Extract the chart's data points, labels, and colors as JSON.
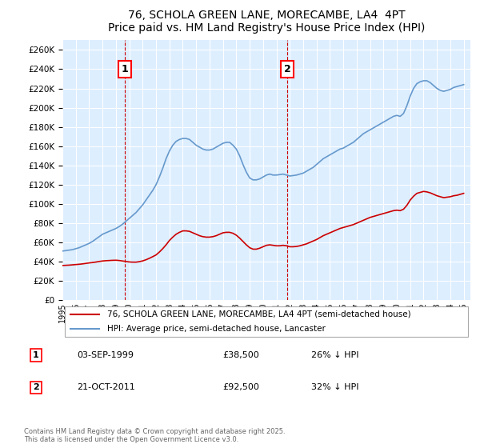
{
  "title": "76, SCHOLA GREEN LANE, MORECAMBE, LA4  4PT",
  "subtitle": "Price paid vs. HM Land Registry's House Price Index (HPI)",
  "background_color": "#ddeeff",
  "plot_bg_color": "#ddeeff",
  "ylabel": "",
  "ylim": [
    0,
    270000
  ],
  "yticks": [
    0,
    20000,
    40000,
    60000,
    80000,
    100000,
    120000,
    140000,
    160000,
    180000,
    200000,
    220000,
    240000,
    260000
  ],
  "xlim_start": 1995.0,
  "xlim_end": 2025.5,
  "red_line_color": "#cc0000",
  "blue_line_color": "#6699cc",
  "marker1_x": 1999.67,
  "marker1_y": 38500,
  "marker1_label": "1",
  "marker2_x": 2011.8,
  "marker2_y": 92500,
  "marker2_label": "2",
  "vline1_x": 1999.67,
  "vline2_x": 2011.8,
  "legend_line1": "76, SCHOLA GREEN LANE, MORECAMBE, LA4 4PT (semi-detached house)",
  "legend_line2": "HPI: Average price, semi-detached house, Lancaster",
  "annotation1_box": "1",
  "annotation1_date": "03-SEP-1999",
  "annotation1_price": "£38,500",
  "annotation1_hpi": "26% ↓ HPI",
  "annotation2_box": "2",
  "annotation2_date": "21-OCT-2011",
  "annotation2_price": "£92,500",
  "annotation2_hpi": "32% ↓ HPI",
  "copyright_text": "Contains HM Land Registry data © Crown copyright and database right 2025.\nThis data is licensed under the Open Government Licence v3.0.",
  "hpi_years": [
    1995.0,
    1995.25,
    1995.5,
    1995.75,
    1996.0,
    1996.25,
    1996.5,
    1996.75,
    1997.0,
    1997.25,
    1997.5,
    1997.75,
    1998.0,
    1998.25,
    1998.5,
    1998.75,
    1999.0,
    1999.25,
    1999.5,
    1999.75,
    2000.0,
    2000.25,
    2000.5,
    2000.75,
    2001.0,
    2001.25,
    2001.5,
    2001.75,
    2002.0,
    2002.25,
    2002.5,
    2002.75,
    2003.0,
    2003.25,
    2003.5,
    2003.75,
    2004.0,
    2004.25,
    2004.5,
    2004.75,
    2005.0,
    2005.25,
    2005.5,
    2005.75,
    2006.0,
    2006.25,
    2006.5,
    2006.75,
    2007.0,
    2007.25,
    2007.5,
    2007.75,
    2008.0,
    2008.25,
    2008.5,
    2008.75,
    2009.0,
    2009.25,
    2009.5,
    2009.75,
    2010.0,
    2010.25,
    2010.5,
    2010.75,
    2011.0,
    2011.25,
    2011.5,
    2011.75,
    2012.0,
    2012.25,
    2012.5,
    2012.75,
    2013.0,
    2013.25,
    2013.5,
    2013.75,
    2014.0,
    2014.25,
    2014.5,
    2014.75,
    2015.0,
    2015.25,
    2015.5,
    2015.75,
    2016.0,
    2016.25,
    2016.5,
    2016.75,
    2017.0,
    2017.25,
    2017.5,
    2017.75,
    2018.0,
    2018.25,
    2018.5,
    2018.75,
    2019.0,
    2019.25,
    2019.5,
    2019.75,
    2020.0,
    2020.25,
    2020.5,
    2020.75,
    2021.0,
    2021.25,
    2021.5,
    2021.75,
    2022.0,
    2022.25,
    2022.5,
    2022.75,
    2023.0,
    2023.25,
    2023.5,
    2023.75,
    2024.0,
    2024.25,
    2024.5,
    2024.75,
    2025.0
  ],
  "hpi_values": [
    51000,
    51500,
    52000,
    52500,
    53500,
    54500,
    56000,
    57500,
    59000,
    61000,
    63500,
    66000,
    68500,
    70000,
    71500,
    73000,
    74500,
    76500,
    79000,
    82000,
    85000,
    88000,
    91000,
    95000,
    99000,
    104000,
    109000,
    114000,
    120000,
    128000,
    137000,
    147000,
    155000,
    161000,
    165000,
    167000,
    168000,
    168000,
    167000,
    164000,
    161000,
    159000,
    157000,
    156000,
    156000,
    157000,
    159000,
    161000,
    163000,
    164000,
    164000,
    161000,
    157000,
    150000,
    141000,
    133000,
    127000,
    125000,
    125000,
    126000,
    128000,
    130000,
    131000,
    130000,
    130000,
    130500,
    131000,
    130000,
    129000,
    129500,
    130000,
    131000,
    132000,
    134000,
    136000,
    138000,
    141000,
    144000,
    147000,
    149000,
    151000,
    153000,
    155000,
    157000,
    158000,
    160000,
    162000,
    164000,
    167000,
    170000,
    173000,
    175000,
    177000,
    179000,
    181000,
    183000,
    185000,
    187000,
    189000,
    191000,
    192000,
    191000,
    194000,
    202000,
    212000,
    220000,
    225000,
    227000,
    228000,
    228000,
    226000,
    223000,
    220000,
    218000,
    217000,
    218000,
    219000,
    221000,
    222000,
    223000,
    224000
  ],
  "red_years": [
    1995.0,
    1995.25,
    1995.5,
    1995.75,
    1996.0,
    1996.25,
    1996.5,
    1996.75,
    1997.0,
    1997.25,
    1997.5,
    1997.75,
    1998.0,
    1998.25,
    1998.5,
    1998.75,
    1999.0,
    1999.25,
    1999.5,
    1999.75,
    2000.0,
    2000.25,
    2000.5,
    2000.75,
    2001.0,
    2001.25,
    2001.5,
    2001.75,
    2002.0,
    2002.25,
    2002.5,
    2002.75,
    2003.0,
    2003.25,
    2003.5,
    2003.75,
    2004.0,
    2004.25,
    2004.5,
    2004.75,
    2005.0,
    2005.25,
    2005.5,
    2005.75,
    2006.0,
    2006.25,
    2006.5,
    2006.75,
    2007.0,
    2007.25,
    2007.5,
    2007.75,
    2008.0,
    2008.25,
    2008.5,
    2008.75,
    2009.0,
    2009.25,
    2009.5,
    2009.75,
    2010.0,
    2010.25,
    2010.5,
    2010.75,
    2011.0,
    2011.25,
    2011.5,
    2011.75,
    2012.0,
    2012.25,
    2012.5,
    2012.75,
    2013.0,
    2013.25,
    2013.5,
    2013.75,
    2014.0,
    2014.25,
    2014.5,
    2014.75,
    2015.0,
    2015.25,
    2015.5,
    2015.75,
    2016.0,
    2016.25,
    2016.5,
    2016.75,
    2017.0,
    2017.25,
    2017.5,
    2017.75,
    2018.0,
    2018.25,
    2018.5,
    2018.75,
    2019.0,
    2019.25,
    2019.5,
    2019.75,
    2020.0,
    2020.25,
    2020.5,
    2020.75,
    2021.0,
    2021.25,
    2021.5,
    2021.75,
    2022.0,
    2022.25,
    2022.5,
    2022.75,
    2023.0,
    2023.25,
    2023.5,
    2023.75,
    2024.0,
    2024.25,
    2024.5,
    2024.75,
    2025.0
  ],
  "red_values": [
    36000,
    36200,
    36400,
    36700,
    37000,
    37300,
    37700,
    38200,
    38700,
    39100,
    39600,
    40200,
    40700,
    41000,
    41200,
    41400,
    41500,
    41200,
    40700,
    40200,
    39700,
    39500,
    39500,
    40000,
    40800,
    42000,
    43500,
    45200,
    47000,
    50000,
    53500,
    57500,
    62000,
    65500,
    68500,
    70500,
    72000,
    72000,
    71500,
    70000,
    68500,
    67000,
    66000,
    65500,
    65500,
    66000,
    67000,
    68500,
    70000,
    70500,
    70500,
    69500,
    67500,
    64500,
    61000,
    57500,
    54500,
    53000,
    53000,
    54000,
    55500,
    57000,
    57500,
    57000,
    56500,
    56500,
    57000,
    56500,
    55500,
    55500,
    55800,
    56500,
    57500,
    58500,
    60000,
    61500,
    63000,
    65000,
    67000,
    68500,
    70000,
    71500,
    73000,
    74500,
    75500,
    76500,
    77500,
    78500,
    80000,
    81500,
    83000,
    84500,
    86000,
    87000,
    88000,
    89000,
    90000,
    91000,
    92000,
    93000,
    93500,
    93000,
    94500,
    98500,
    104000,
    108000,
    111000,
    112000,
    113000,
    112500,
    111500,
    110000,
    108500,
    107500,
    106500,
    107000,
    107500,
    108500,
    109000,
    110000,
    111000
  ]
}
